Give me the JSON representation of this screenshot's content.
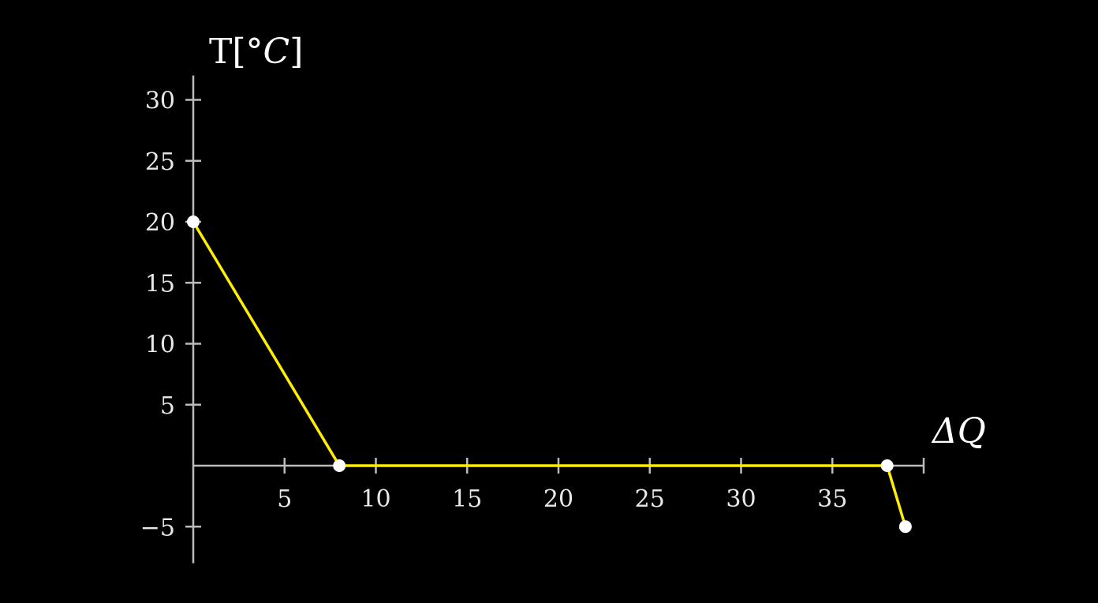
{
  "chart_data": {
    "type": "line",
    "title": "",
    "xlabel": "ΔQ",
    "ylabel_prefix": "T[°",
    "ylabel_unit": "C",
    "ylabel_suffix": "]",
    "xlim": [
      0,
      40
    ],
    "ylim": [
      -8,
      32
    ],
    "x_ticks": [
      5,
      10,
      15,
      20,
      25,
      30,
      35
    ],
    "x_tick_labels": [
      "5",
      "10",
      "15",
      "20",
      "25",
      "30",
      "35"
    ],
    "y_ticks": [
      -5,
      5,
      10,
      15,
      20,
      25,
      30
    ],
    "y_tick_labels": [
      "−5",
      "5",
      "10",
      "15",
      "20",
      "25",
      "30"
    ],
    "grid": false,
    "series": [
      {
        "x": [
          0,
          8,
          38,
          39
        ],
        "y": [
          20,
          0,
          0,
          -5
        ]
      }
    ],
    "line_color": "#ffee00",
    "point_color": "#ffffff",
    "axis_color": "#bbbbbb"
  }
}
